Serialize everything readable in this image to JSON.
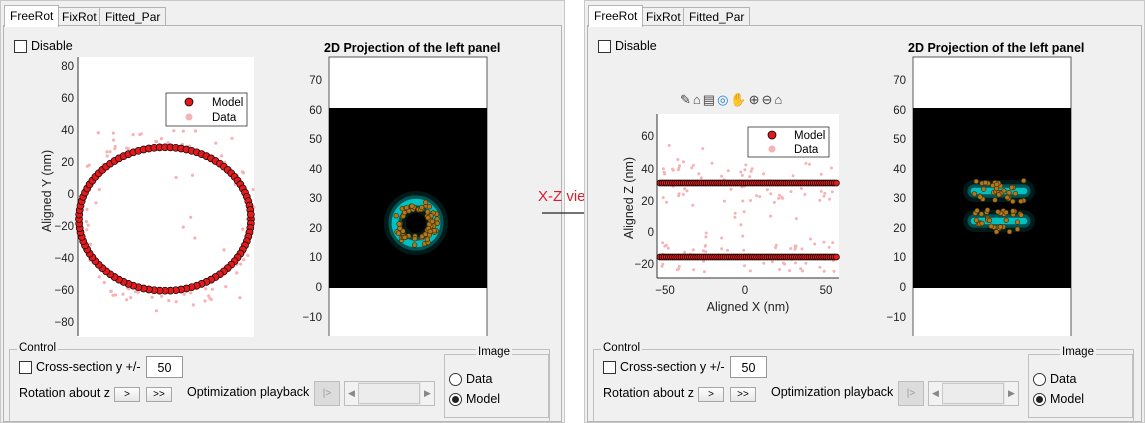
{
  "colors": {
    "model_fill": "#e31a1c",
    "data_fill": "#f6b2b6",
    "cyan": "#00dcdc",
    "dot": "#b07820",
    "annotation": "#d2202f"
  },
  "annotation": {
    "label": "X-Z view",
    "icon": "arrow-right-icon"
  },
  "toolbar_icons": [
    "brush-icon",
    "paint-brush-icon",
    "axes-icon",
    "rotate-icon",
    "pan-icon",
    "zoom-in-icon",
    "zoom-out-icon",
    "home-icon"
  ],
  "panels": [
    {
      "tabs": [
        {
          "label": "FreeRot",
          "active": true
        },
        {
          "label": "FixRot",
          "active": false
        },
        {
          "label": "Fitted_Par",
          "active": false
        }
      ],
      "disable_label": "Disable",
      "scatter": {
        "xlabel": "",
        "ylabel": "Aligned Y (nm)",
        "yticks": [
          "80",
          "60",
          "40",
          "20",
          "0",
          "−20",
          "−40",
          "−60",
          "−80"
        ],
        "xticks": [],
        "legend": [
          "Model",
          "Data"
        ]
      },
      "projection": {
        "title": "2D Projection of the left panel",
        "yticks": [
          "70",
          "60",
          "50",
          "40",
          "30",
          "20",
          "10",
          "0",
          "−10"
        ]
      },
      "control": {
        "label": "Control",
        "cross_label": "Cross-section y +/-",
        "cross_value": "50",
        "rotation_label": "Rotation about z",
        "btn1": ">",
        "btn2": ">>",
        "opt_label": "Optimization playback",
        "play": "|>",
        "image_label": "Image",
        "image_options": [
          {
            "label": "Data",
            "selected": false
          },
          {
            "label": "Model",
            "selected": true
          }
        ]
      }
    },
    {
      "tabs": [
        {
          "label": "FreeRot",
          "active": true
        },
        {
          "label": "FixRot",
          "active": false
        },
        {
          "label": "Fitted_Par",
          "active": false
        }
      ],
      "disable_label": "Disable",
      "scatter": {
        "xlabel": "Aligned X (nm)",
        "ylabel": "Aligned Z (nm)",
        "yticks": [
          "60",
          "40",
          "20",
          "0",
          "−20"
        ],
        "xticks": [
          "−50",
          "0",
          "50"
        ],
        "legend": [
          "Model",
          "Data"
        ]
      },
      "projection": {
        "title": "2D Projection of the left panel",
        "yticks": [
          "70",
          "60",
          "50",
          "40",
          "30",
          "20",
          "10",
          "0",
          "−10"
        ]
      },
      "control": {
        "label": "Control",
        "cross_label": "Cross-section y +/-",
        "cross_value": "50",
        "rotation_label": "Rotation about z",
        "btn1": ">",
        "btn2": ">>",
        "opt_label": "Optimization playback",
        "play": "|>",
        "image_label": "Image",
        "image_options": [
          {
            "label": "Data",
            "selected": false
          },
          {
            "label": "Model",
            "selected": true
          }
        ]
      }
    }
  ]
}
